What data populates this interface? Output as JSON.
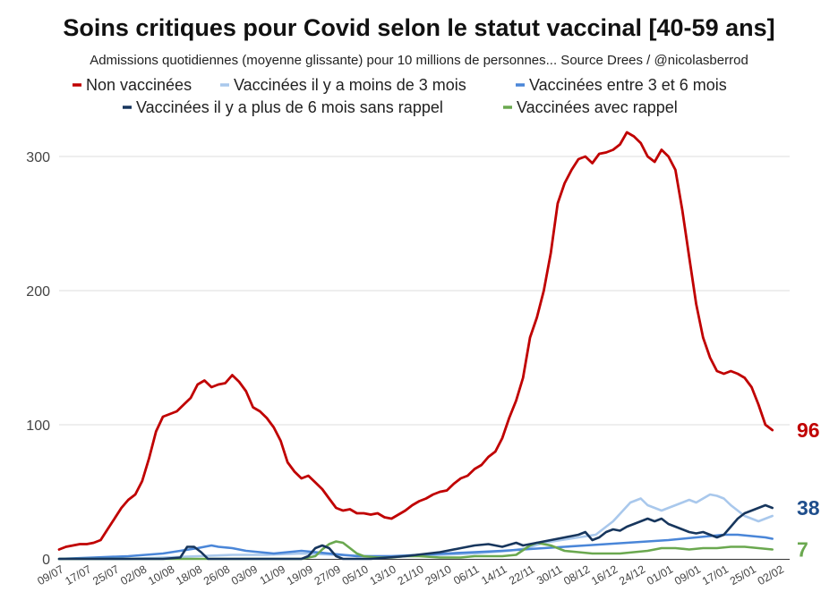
{
  "chart_data": {
    "type": "line",
    "title": "Soins critiques pour Covid selon le statut vaccinal [40-59 ans]",
    "subtitle": "Admissions quotidiennes (moyenne glissante) pour 10 millions de personnes... Source Drees / @nicolasberrod",
    "xlabel": "",
    "ylabel": "",
    "ylim": [
      0,
      330
    ],
    "yticks": [
      0,
      100,
      200,
      300
    ],
    "grid": true,
    "legend_position": "top",
    "x_tick_labels": [
      "09/07",
      "17/07",
      "25/07",
      "02/08",
      "10/08",
      "18/08",
      "26/08",
      "03/09",
      "11/09",
      "19/09",
      "27/09",
      "05/10",
      "13/10",
      "21/10",
      "29/10",
      "06/11",
      "14/11",
      "22/11",
      "30/11",
      "08/12",
      "16/12",
      "24/12",
      "01/01",
      "09/01",
      "17/01",
      "25/01",
      "02/02"
    ],
    "x_tick_days": [
      0,
      8,
      16,
      24,
      32,
      40,
      48,
      56,
      64,
      72,
      80,
      88,
      96,
      104,
      112,
      120,
      128,
      136,
      144,
      152,
      160,
      168,
      176,
      184,
      192,
      200,
      208
    ],
    "x_range_days": [
      0,
      211
    ],
    "x_day_zero": "09/07",
    "series": [
      {
        "name": "Non vaccinées",
        "color": "#c00000",
        "stroke_width": 2.8,
        "points": [
          [
            0,
            7
          ],
          [
            2,
            9
          ],
          [
            4,
            10
          ],
          [
            6,
            11
          ],
          [
            8,
            11
          ],
          [
            10,
            12
          ],
          [
            12,
            14
          ],
          [
            14,
            22
          ],
          [
            16,
            30
          ],
          [
            18,
            38
          ],
          [
            20,
            44
          ],
          [
            22,
            48
          ],
          [
            24,
            58
          ],
          [
            26,
            75
          ],
          [
            28,
            95
          ],
          [
            30,
            106
          ],
          [
            32,
            108
          ],
          [
            34,
            110
          ],
          [
            36,
            115
          ],
          [
            38,
            120
          ],
          [
            40,
            130
          ],
          [
            42,
            133
          ],
          [
            44,
            128
          ],
          [
            46,
            130
          ],
          [
            48,
            131
          ],
          [
            50,
            137
          ],
          [
            52,
            132
          ],
          [
            54,
            125
          ],
          [
            56,
            113
          ],
          [
            58,
            110
          ],
          [
            60,
            105
          ],
          [
            62,
            98
          ],
          [
            64,
            88
          ],
          [
            66,
            72
          ],
          [
            68,
            65
          ],
          [
            70,
            60
          ],
          [
            72,
            62
          ],
          [
            74,
            57
          ],
          [
            76,
            52
          ],
          [
            78,
            45
          ],
          [
            80,
            38
          ],
          [
            82,
            36
          ],
          [
            84,
            37
          ],
          [
            86,
            34
          ],
          [
            88,
            34
          ],
          [
            90,
            33
          ],
          [
            92,
            34
          ],
          [
            94,
            31
          ],
          [
            96,
            30
          ],
          [
            98,
            33
          ],
          [
            100,
            36
          ],
          [
            102,
            40
          ],
          [
            104,
            43
          ],
          [
            106,
            45
          ],
          [
            108,
            48
          ],
          [
            110,
            50
          ],
          [
            112,
            51
          ],
          [
            114,
            56
          ],
          [
            116,
            60
          ],
          [
            118,
            62
          ],
          [
            120,
            67
          ],
          [
            122,
            70
          ],
          [
            124,
            76
          ],
          [
            126,
            80
          ],
          [
            128,
            90
          ],
          [
            130,
            105
          ],
          [
            132,
            118
          ],
          [
            134,
            135
          ],
          [
            136,
            165
          ],
          [
            138,
            180
          ],
          [
            140,
            200
          ],
          [
            142,
            228
          ],
          [
            144,
            265
          ],
          [
            146,
            280
          ],
          [
            148,
            290
          ],
          [
            150,
            298
          ],
          [
            152,
            300
          ],
          [
            154,
            295
          ],
          [
            156,
            302
          ],
          [
            158,
            303
          ],
          [
            160,
            305
          ],
          [
            162,
            309
          ],
          [
            164,
            318
          ],
          [
            166,
            315
          ],
          [
            168,
            310
          ],
          [
            170,
            300
          ],
          [
            172,
            296
          ],
          [
            174,
            305
          ],
          [
            176,
            300
          ],
          [
            178,
            290
          ],
          [
            180,
            260
          ],
          [
            182,
            225
          ],
          [
            184,
            190
          ],
          [
            186,
            165
          ],
          [
            188,
            150
          ],
          [
            190,
            140
          ],
          [
            192,
            138
          ],
          [
            194,
            140
          ],
          [
            196,
            138
          ],
          [
            198,
            135
          ],
          [
            200,
            128
          ],
          [
            202,
            115
          ],
          [
            204,
            100
          ],
          [
            206,
            96
          ]
        ]
      },
      {
        "name": "Vaccinées il y a moins de 3 mois",
        "color": "#a9c8ec",
        "stroke_width": 2.6,
        "points": [
          [
            0,
            0
          ],
          [
            20,
            0
          ],
          [
            30,
            1
          ],
          [
            40,
            2
          ],
          [
            50,
            3
          ],
          [
            60,
            3
          ],
          [
            70,
            4
          ],
          [
            80,
            3
          ],
          [
            90,
            2
          ],
          [
            100,
            2
          ],
          [
            110,
            3
          ],
          [
            120,
            4
          ],
          [
            130,
            6
          ],
          [
            135,
            8
          ],
          [
            140,
            12
          ],
          [
            145,
            14
          ],
          [
            150,
            16
          ],
          [
            155,
            18
          ],
          [
            160,
            28
          ],
          [
            165,
            42
          ],
          [
            168,
            45
          ],
          [
            170,
            40
          ],
          [
            172,
            38
          ],
          [
            174,
            36
          ],
          [
            176,
            38
          ],
          [
            178,
            40
          ],
          [
            180,
            42
          ],
          [
            182,
            44
          ],
          [
            184,
            42
          ],
          [
            186,
            45
          ],
          [
            188,
            48
          ],
          [
            190,
            47
          ],
          [
            192,
            45
          ],
          [
            194,
            40
          ],
          [
            196,
            36
          ],
          [
            198,
            32
          ],
          [
            200,
            30
          ],
          [
            202,
            28
          ],
          [
            204,
            30
          ],
          [
            206,
            32
          ]
        ]
      },
      {
        "name": "Vaccinées entre 3 et 6 mois",
        "color": "#4a86d8",
        "stroke_width": 2.6,
        "points": [
          [
            0,
            0
          ],
          [
            10,
            1
          ],
          [
            20,
            2
          ],
          [
            30,
            4
          ],
          [
            35,
            6
          ],
          [
            40,
            8
          ],
          [
            42,
            9
          ],
          [
            44,
            10
          ],
          [
            46,
            9
          ],
          [
            50,
            8
          ],
          [
            54,
            6
          ],
          [
            58,
            5
          ],
          [
            62,
            4
          ],
          [
            66,
            5
          ],
          [
            70,
            6
          ],
          [
            74,
            5
          ],
          [
            78,
            4
          ],
          [
            82,
            3
          ],
          [
            86,
            2
          ],
          [
            90,
            2
          ],
          [
            96,
            2
          ],
          [
            104,
            3
          ],
          [
            112,
            4
          ],
          [
            120,
            5
          ],
          [
            128,
            6
          ],
          [
            134,
            7
          ],
          [
            140,
            8
          ],
          [
            146,
            9
          ],
          [
            152,
            10
          ],
          [
            158,
            11
          ],
          [
            164,
            12
          ],
          [
            170,
            13
          ],
          [
            176,
            14
          ],
          [
            180,
            15
          ],
          [
            184,
            16
          ],
          [
            188,
            17
          ],
          [
            192,
            18
          ],
          [
            196,
            18
          ],
          [
            200,
            17
          ],
          [
            204,
            16
          ],
          [
            206,
            15
          ]
        ]
      },
      {
        "name": "Vaccinées il y a plus de 6 mois sans rappel",
        "color": "#17365d",
        "stroke_width": 2.6,
        "points": [
          [
            0,
            0
          ],
          [
            30,
            0
          ],
          [
            35,
            1
          ],
          [
            37,
            9
          ],
          [
            39,
            9
          ],
          [
            41,
            5
          ],
          [
            43,
            0
          ],
          [
            70,
            0
          ],
          [
            72,
            2
          ],
          [
            74,
            8
          ],
          [
            76,
            10
          ],
          [
            78,
            8
          ],
          [
            80,
            2
          ],
          [
            82,
            0
          ],
          [
            90,
            0
          ],
          [
            100,
            2
          ],
          [
            110,
            5
          ],
          [
            116,
            8
          ],
          [
            120,
            10
          ],
          [
            124,
            11
          ],
          [
            128,
            9
          ],
          [
            132,
            12
          ],
          [
            134,
            10
          ],
          [
            138,
            12
          ],
          [
            142,
            14
          ],
          [
            146,
            16
          ],
          [
            150,
            18
          ],
          [
            152,
            20
          ],
          [
            154,
            14
          ],
          [
            156,
            16
          ],
          [
            158,
            20
          ],
          [
            160,
            22
          ],
          [
            162,
            21
          ],
          [
            164,
            24
          ],
          [
            166,
            26
          ],
          [
            168,
            28
          ],
          [
            170,
            30
          ],
          [
            172,
            28
          ],
          [
            174,
            30
          ],
          [
            176,
            26
          ],
          [
            178,
            24
          ],
          [
            180,
            22
          ],
          [
            182,
            20
          ],
          [
            184,
            19
          ],
          [
            186,
            20
          ],
          [
            188,
            18
          ],
          [
            190,
            16
          ],
          [
            192,
            18
          ],
          [
            194,
            24
          ],
          [
            196,
            30
          ],
          [
            198,
            34
          ],
          [
            200,
            36
          ],
          [
            202,
            38
          ],
          [
            204,
            40
          ],
          [
            206,
            38
          ]
        ]
      },
      {
        "name": "Vaccinées avec rappel",
        "color": "#6aa84f",
        "stroke_width": 2.6,
        "points": [
          [
            0,
            0
          ],
          [
            60,
            0
          ],
          [
            70,
            0
          ],
          [
            74,
            2
          ],
          [
            76,
            7
          ],
          [
            78,
            11
          ],
          [
            80,
            13
          ],
          [
            82,
            12
          ],
          [
            84,
            8
          ],
          [
            86,
            4
          ],
          [
            88,
            2
          ],
          [
            92,
            1
          ],
          [
            96,
            1
          ],
          [
            100,
            2
          ],
          [
            104,
            2
          ],
          [
            110,
            1
          ],
          [
            116,
            1
          ],
          [
            120,
            2
          ],
          [
            124,
            2
          ],
          [
            128,
            2
          ],
          [
            132,
            3
          ],
          [
            136,
            10
          ],
          [
            138,
            12
          ],
          [
            140,
            11
          ],
          [
            142,
            10
          ],
          [
            144,
            8
          ],
          [
            146,
            6
          ],
          [
            150,
            5
          ],
          [
            154,
            4
          ],
          [
            158,
            4
          ],
          [
            162,
            4
          ],
          [
            166,
            5
          ],
          [
            170,
            6
          ],
          [
            172,
            7
          ],
          [
            174,
            8
          ],
          [
            178,
            8
          ],
          [
            182,
            7
          ],
          [
            186,
            8
          ],
          [
            190,
            8
          ],
          [
            194,
            9
          ],
          [
            198,
            9
          ],
          [
            202,
            8
          ],
          [
            206,
            7
          ]
        ]
      }
    ],
    "end_labels": [
      {
        "text": "96",
        "value": 96,
        "color": "#c00000"
      },
      {
        "text": "38",
        "value": 38,
        "color": "#1f4e8c"
      },
      {
        "text": "7",
        "value": 7,
        "color": "#6aa84f"
      }
    ]
  }
}
